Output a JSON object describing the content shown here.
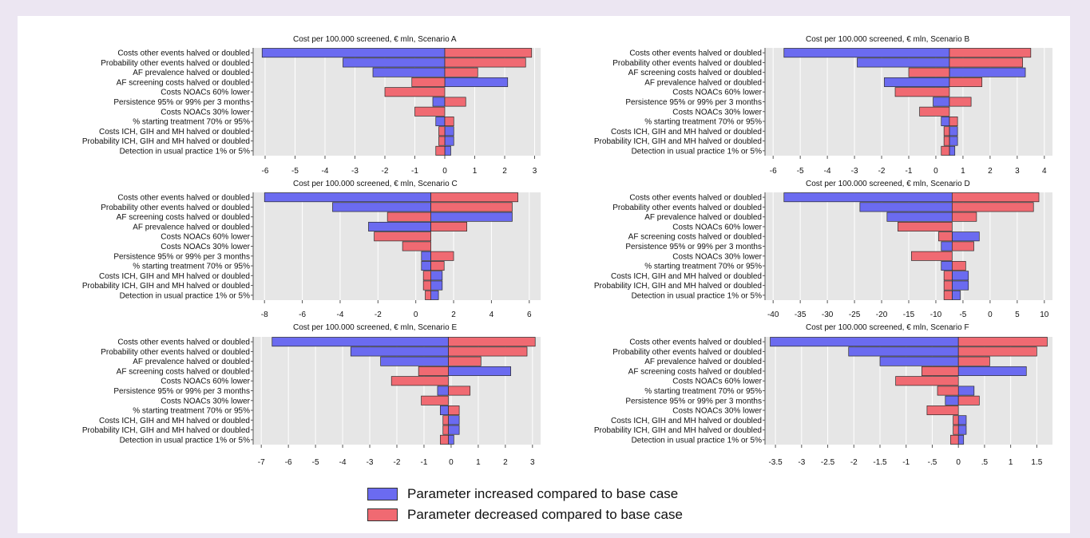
{
  "colors": {
    "increased": "#6b6bf0",
    "decreased": "#f06a72",
    "panel_bg": "#e6e6e6",
    "grid": "#ffffff"
  },
  "legend": {
    "increased_label": "Parameter increased compared to base case",
    "decreased_label": "Parameter decreased compared to base case"
  },
  "chart_data": [
    {
      "type": "bar",
      "orientation": "horizontal",
      "title": "Cost per 100.000 screened, € mln, Scenario A",
      "base": 0,
      "xlim": [
        -6.4,
        3.2
      ],
      "xticks": [
        -6,
        -5,
        -4,
        -3,
        -2,
        -1,
        0,
        1,
        2,
        3
      ],
      "xtick_labels": [
        "-6",
        "-5",
        "-4",
        "-3",
        "-2",
        "-1",
        "0",
        "1",
        "2",
        "3"
      ],
      "grid": true,
      "categories": [
        "Costs other events halved or doubled",
        "Probability other events halved or doubled",
        "AF prevalence halved or doubled",
        "AF screening costs halved or doubled",
        "Costs NOACs 60% lower",
        "Persistence 95% or 99% per 3 months",
        "Costs NOACs 30% lower",
        "% starting treatment 70% or 95%",
        "Costs ICH, GIH and MH halved or doubled",
        "Probability ICH, GIH and MH halved or doubled",
        "Detection in usual practice 1% or 5%"
      ],
      "series": [
        {
          "name": "Parameter increased compared to base case",
          "color": "#6b6bf0",
          "values": [
            -6.1,
            -3.4,
            -2.4,
            2.1,
            null,
            -0.4,
            null,
            -0.3,
            0.3,
            0.3,
            0.2
          ]
        },
        {
          "name": "Parameter decreased compared to base case",
          "color": "#f06a72",
          "values": [
            2.9,
            2.7,
            1.1,
            -1.1,
            -2.0,
            0.7,
            -1.0,
            0.3,
            -0.2,
            -0.2,
            -0.3
          ]
        }
      ]
    },
    {
      "type": "bar",
      "orientation": "horizontal",
      "title": "Cost per 100.000 screened, € mln, Scenario B",
      "base": 0.5,
      "xlim": [
        -6.3,
        4.3
      ],
      "xticks": [
        -6,
        -5,
        -4,
        -3,
        -2,
        -1,
        0,
        1,
        2,
        3,
        4
      ],
      "xtick_labels": [
        "-6",
        "-5",
        "-4",
        "-3",
        "-2",
        "-1",
        "0",
        "1",
        "2",
        "3",
        "4"
      ],
      "grid": true,
      "categories": [
        "Costs other events halved or doubled",
        "Probability other events halved or doubled",
        "AF screening costs halved or doubled",
        "AF prevalence halved or doubled",
        "Costs NOACs 60% lower",
        "Persistence 95% or 99% per 3 months",
        "Costs NOACs 30% lower",
        "% starting treatment 70% or 95%",
        "Costs ICH, GIH and MH halved or doubled",
        "Probability ICH, GIH and MH halved or doubled",
        "Detection in usual practice 1% or 5%"
      ],
      "series": [
        {
          "name": "Parameter increased compared to base case",
          "color": "#6b6bf0",
          "values": [
            -5.6,
            -2.9,
            3.3,
            -1.9,
            null,
            -0.1,
            null,
            0.2,
            0.8,
            0.8,
            0.7
          ]
        },
        {
          "name": "Parameter decreased compared to base case",
          "color": "#f06a72",
          "values": [
            3.5,
            3.2,
            -1.0,
            1.7,
            -1.5,
            1.3,
            -0.6,
            0.8,
            0.3,
            0.3,
            0.2
          ]
        }
      ]
    },
    {
      "type": "bar",
      "orientation": "horizontal",
      "title": "Cost per 100.000 screened, € mln, Scenario C",
      "base": 0.8,
      "xlim": [
        -8.6,
        6.6
      ],
      "xticks": [
        -8,
        -6,
        -4,
        -2,
        0,
        2,
        4,
        6
      ],
      "xtick_labels": [
        "-8",
        "-6",
        "-4",
        "-2",
        "0",
        "2",
        "4",
        "6"
      ],
      "grid": true,
      "categories": [
        "Costs other events halved or doubled",
        "Probability other events halved or doubled",
        "AF screening costs halved or doubled",
        "AF prevalence halved or doubled",
        "Costs NOACs 60% lower",
        "Costs NOACs 30% lower",
        "Persistence 95% or 99% per 3 months",
        "% starting treatment 70% or 95%",
        "Costs ICH, GIH and MH halved or doubled",
        "Probability ICH, GIH and MH halved or doubled",
        "Detection in usual practice 1% or 5%"
      ],
      "series": [
        {
          "name": "Parameter increased compared to base case",
          "color": "#6b6bf0",
          "values": [
            -8.0,
            -4.4,
            5.1,
            -2.5,
            null,
            null,
            0.3,
            0.3,
            1.4,
            1.4,
            1.2
          ]
        },
        {
          "name": "Parameter decreased compared to base case",
          "color": "#f06a72",
          "values": [
            5.4,
            5.1,
            -1.5,
            2.7,
            -2.2,
            -0.7,
            2.0,
            1.5,
            0.4,
            0.4,
            0.5
          ]
        }
      ]
    },
    {
      "type": "bar",
      "orientation": "horizontal",
      "title": "Cost per 100.000 screened, € mln, Scenario D",
      "base": -7,
      "xlim": [
        -41.5,
        11.5
      ],
      "xticks": [
        -40,
        -35,
        -30,
        -25,
        -20,
        -15,
        -10,
        -5,
        0,
        5,
        10
      ],
      "xtick_labels": [
        "-40",
        "-35",
        "-30",
        "-25",
        "-20",
        "-15",
        "-10",
        "-5",
        "0",
        "5",
        "10"
      ],
      "grid": true,
      "categories": [
        "Costs other events halved or doubled",
        "Probability other events halved or doubled",
        "AF prevalence halved or doubled",
        "Costs NOACs 60% lower",
        "AF screening costs halved or doubled",
        "Persistence 95% or 99% per 3 months",
        "Costs NOACs 30% lower",
        "% starting treatment 70% or 95%",
        "Costs ICH, GIH and MH halved or doubled",
        "Probability ICH, GIH and MH halved or doubled",
        "Detection in usual practice 1% or 5%"
      ],
      "series": [
        {
          "name": "Parameter increased compared to base case",
          "color": "#6b6bf0",
          "values": [
            -38.0,
            -24.0,
            -19.0,
            null,
            -2.0,
            -9.0,
            null,
            -9.0,
            -4.0,
            -4.0,
            -5.5
          ]
        },
        {
          "name": "Parameter decreased compared to base case",
          "color": "#f06a72",
          "values": [
            9.0,
            8.0,
            -2.5,
            -17.0,
            -9.5,
            -3.0,
            -14.5,
            -4.5,
            -8.5,
            -8.5,
            -8.5
          ]
        }
      ]
    },
    {
      "type": "bar",
      "orientation": "horizontal",
      "title": "Cost per 100.000 screened, € mln, Scenario E",
      "base": -0.1,
      "xlim": [
        -7.3,
        3.3
      ],
      "xticks": [
        -7,
        -6,
        -5,
        -4,
        -3,
        -2,
        -1,
        0,
        1,
        2,
        3
      ],
      "xtick_labels": [
        "-7",
        "-6",
        "-5",
        "-4",
        "-3",
        "-2",
        "-1",
        "0",
        "1",
        "2",
        "3"
      ],
      "grid": true,
      "categories": [
        "Costs other events halved or doubled",
        "Probability other events halved or doubled",
        "AF prevalence halved or doubled",
        "AF screening costs halved or doubled",
        "Costs NOACs 60% lower",
        "Persistence 95% or 99% per 3 months",
        "Costs NOACs 30% lower",
        "% starting treatment 70% or 95%",
        "Costs ICH, GIH and MH halved or doubled",
        "Probability ICH, GIH and MH halved or doubled",
        "Detection in usual practice 1% or 5%"
      ],
      "series": [
        {
          "name": "Parameter increased compared to base case",
          "color": "#6b6bf0",
          "values": [
            -6.6,
            -3.7,
            -2.6,
            2.2,
            null,
            -0.5,
            null,
            -0.4,
            0.3,
            0.3,
            0.1
          ]
        },
        {
          "name": "Parameter decreased compared to base case",
          "color": "#f06a72",
          "values": [
            3.1,
            2.8,
            1.1,
            -1.2,
            -2.2,
            0.7,
            -1.1,
            0.3,
            -0.3,
            -0.3,
            -0.4
          ]
        }
      ]
    },
    {
      "type": "bar",
      "orientation": "horizontal",
      "title": "Cost per 100.000 screened, € mln, Scenario F",
      "base": 0,
      "xlim": [
        -3.7,
        1.8
      ],
      "xticks": [
        -3.5,
        -3,
        -2.5,
        -2,
        -1.5,
        -1,
        -0.5,
        0,
        0.5,
        1,
        1.5
      ],
      "xtick_labels": [
        "-3.5",
        "-3",
        "-2.5",
        "-2",
        "-1.5",
        "-1",
        "-.5",
        "0",
        ".5",
        "1",
        "1.5"
      ],
      "grid": true,
      "categories": [
        "Costs other events halved or doubled",
        "Probability other events halved or doubled",
        "AF prevalence halved or doubled",
        "AF screening costs halved or doubled",
        "Costs NOACs 60% lower",
        "% starting treatment 70% or 95%",
        "Persistence 95% or 99% per 3 months",
        "Costs NOACs 30% lower",
        "Costs ICH, GIH and MH halved or doubled",
        "Probability ICH, GIH and MH halved or doubled",
        "Detection in usual practice 1% or 5%"
      ],
      "series": [
        {
          "name": "Parameter increased compared to base case",
          "color": "#6b6bf0",
          "values": [
            -3.6,
            -2.1,
            -1.5,
            1.3,
            null,
            0.3,
            -0.25,
            null,
            0.15,
            0.15,
            0.1
          ]
        },
        {
          "name": "Parameter decreased compared to base case",
          "color": "#f06a72",
          "values": [
            1.7,
            1.5,
            0.6,
            -0.7,
            -1.2,
            -0.4,
            0.4,
            -0.6,
            -0.1,
            -0.1,
            -0.15
          ]
        }
      ]
    }
  ]
}
